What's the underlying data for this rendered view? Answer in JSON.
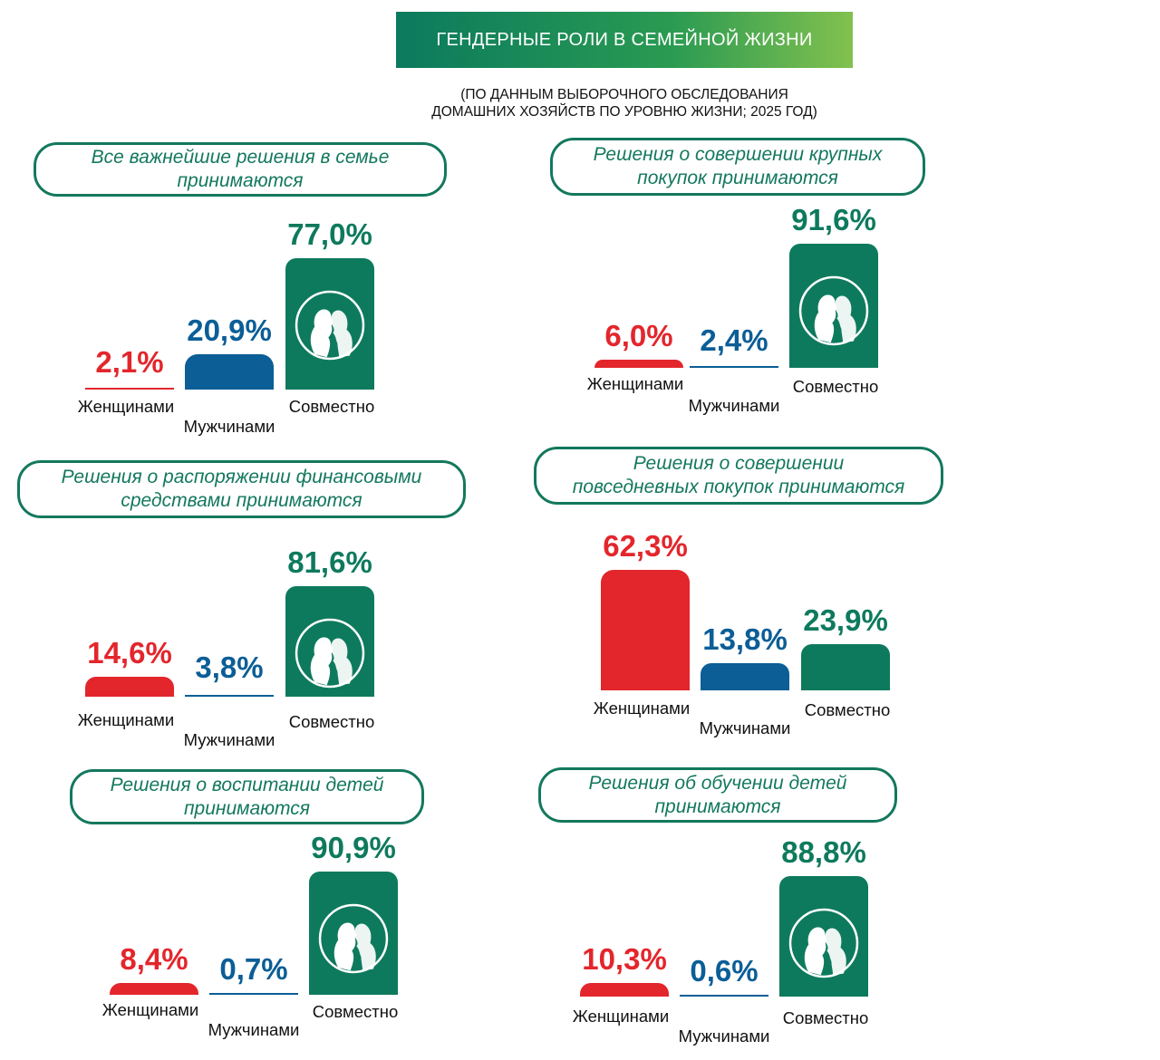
{
  "header": {
    "title": "ГЕНДЕРНЫЕ РОЛИ В СЕМЕЙНОЙ ЖИЗНИ",
    "subtitle_line1": "(ПО ДАННЫМ ВЫБОРОЧНОГО ОБСЛЕДОВАНИЯ",
    "subtitle_line2": "ДОМАШНИХ ХОЗЯЙСТВ ПО УРОВНЮ ЖИЗНИ; 2025 ГОД)"
  },
  "colors": {
    "women": "#e3262c",
    "men": "#0b5e96",
    "joint": "#0e7a5d",
    "accent": "#13785d"
  },
  "icons": {
    "joint_bar": "couple-silhouette-icon"
  },
  "chart_data": [
    {
      "type": "bar",
      "title_line1": "Все важнейшие решения в семье",
      "title_line2": "принимаются",
      "categories": [
        "Женщинами",
        "Мужчинами",
        "Совместно"
      ],
      "values": [
        2.1,
        20.9,
        77.0
      ],
      "labels": [
        "2,1%",
        "20,9%",
        "77,0%"
      ],
      "unit": "%"
    },
    {
      "type": "bar",
      "title_line1": "Решения о совершении крупных",
      "title_line2": "покупок принимаются",
      "categories": [
        "Женщинами",
        "Мужчинами",
        "Совместно"
      ],
      "values": [
        6.0,
        2.4,
        91.6
      ],
      "labels": [
        "6,0%",
        "2,4%",
        "91,6%"
      ],
      "unit": "%"
    },
    {
      "type": "bar",
      "title_line1": "Решения о распоряжении финансовыми",
      "title_line2": "средствами принимаются",
      "categories": [
        "Женщинами",
        "Мужчинами",
        "Совместно"
      ],
      "values": [
        14.6,
        3.8,
        81.6
      ],
      "labels": [
        "14,6%",
        "3,8%",
        "81,6%"
      ],
      "unit": "%"
    },
    {
      "type": "bar",
      "title_line1": "Решения о совершении",
      "title_line2": "повседневных покупок принимаются",
      "categories": [
        "Женщинами",
        "Мужчинами",
        "Совместно"
      ],
      "values": [
        62.3,
        13.8,
        23.9
      ],
      "labels": [
        "62,3%",
        "13,8%",
        "23,9%"
      ],
      "unit": "%"
    },
    {
      "type": "bar",
      "title_line1": "Решения о воспитании детей",
      "title_line2": "принимаются",
      "categories": [
        "Женщинами",
        "Мужчинами",
        "Совместно"
      ],
      "values": [
        8.4,
        0.7,
        90.9
      ],
      "labels": [
        "8,4%",
        "0,7%",
        "90,9%"
      ],
      "unit": "%"
    },
    {
      "type": "bar",
      "title_line1": "Решения об обучении детей",
      "title_line2": "принимаются",
      "categories": [
        "Женщинами",
        "Мужчинами",
        "Совместно"
      ],
      "values": [
        10.3,
        0.6,
        88.8
      ],
      "labels": [
        "10,3%",
        "0,6%",
        "88,8%"
      ],
      "unit": "%"
    }
  ]
}
